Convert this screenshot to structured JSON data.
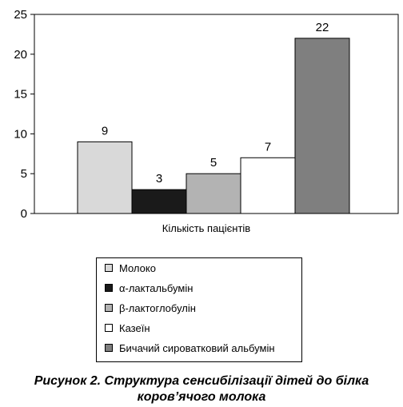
{
  "chart_data": {
    "type": "bar",
    "categories": [
      "Кількість пацієнтів"
    ],
    "series": [
      {
        "name": "Молоко",
        "values": [
          9
        ],
        "color": "#d9d9d9"
      },
      {
        "name": "α-лактальбумін",
        "values": [
          3
        ],
        "color": "#1a1a1a"
      },
      {
        "name": "β-лактоглобулін",
        "values": [
          5
        ],
        "color": "#b3b3b3"
      },
      {
        "name": "Казеїн",
        "values": [
          7
        ],
        "color": "#ffffff"
      },
      {
        "name": "Бичачий сироватковий альбумін",
        "values": [
          22
        ],
        "color": "#7f7f7f"
      }
    ],
    "data_labels": [
      "9",
      "3",
      "5",
      "7",
      "22"
    ],
    "xlabel": "Кількість пацієнтів",
    "ylabel": "",
    "ylim": [
      0,
      25
    ],
    "yticks": [
      0,
      5,
      10,
      15,
      20,
      25
    ],
    "grid": false,
    "legend_position": "bottom"
  },
  "caption": {
    "line1": "Рисунок 2. Структура сенсибілізації дітей до білка",
    "line2": "коров’ячого молока"
  }
}
